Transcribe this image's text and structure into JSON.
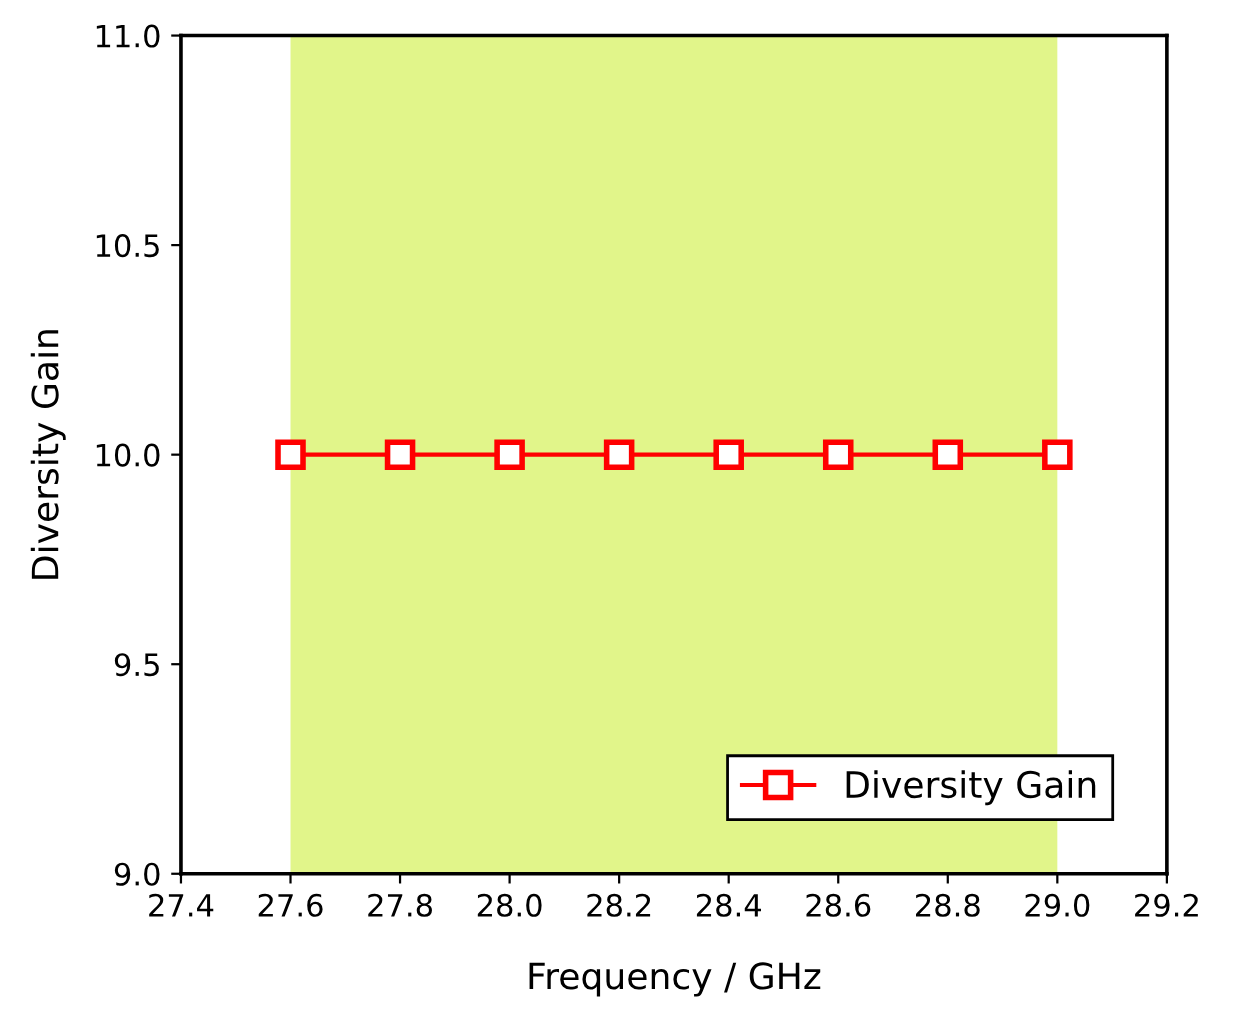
{
  "chart_data": {
    "type": "line",
    "xlabel": "Frequency / GHz",
    "ylabel": "Diversity Gain",
    "x": [
      27.6,
      27.8,
      28.0,
      28.2,
      28.4,
      28.6,
      28.8,
      29.0
    ],
    "series": [
      {
        "name": "Diversity Gain",
        "color": "#ff0000",
        "values": [
          10.0,
          10.0,
          10.0,
          10.0,
          10.0,
          10.0,
          10.0,
          10.0
        ]
      }
    ],
    "xlim": [
      27.4,
      29.2
    ],
    "xticks": [
      {
        "value": 27.4,
        "label": "27.4"
      },
      {
        "value": 27.6,
        "label": "27.6"
      },
      {
        "value": 27.8,
        "label": "27.8"
      },
      {
        "value": 28.0,
        "label": "28.0"
      },
      {
        "value": 28.2,
        "label": "28.2"
      },
      {
        "value": 28.4,
        "label": "28.4"
      },
      {
        "value": 28.6,
        "label": "28.6"
      },
      {
        "value": 28.8,
        "label": "28.8"
      },
      {
        "value": 29.0,
        "label": "29.0"
      },
      {
        "value": 29.2,
        "label": "29.2"
      }
    ],
    "ylim": [
      9.0,
      11.0
    ],
    "yticks": [
      {
        "value": 9.0,
        "label": "9.0"
      },
      {
        "value": 9.5,
        "label": "9.5"
      },
      {
        "value": 10.0,
        "label": "10.0"
      },
      {
        "value": 10.5,
        "label": "10.5"
      },
      {
        "value": 11.0,
        "label": "11.0"
      }
    ],
    "bands": [
      {
        "axis": "x",
        "from": 27.6,
        "to": 29.0,
        "color": "#e1f58a"
      }
    ],
    "marker": "square",
    "line_style": "solid",
    "legend": "bottom right",
    "grid": false
  }
}
